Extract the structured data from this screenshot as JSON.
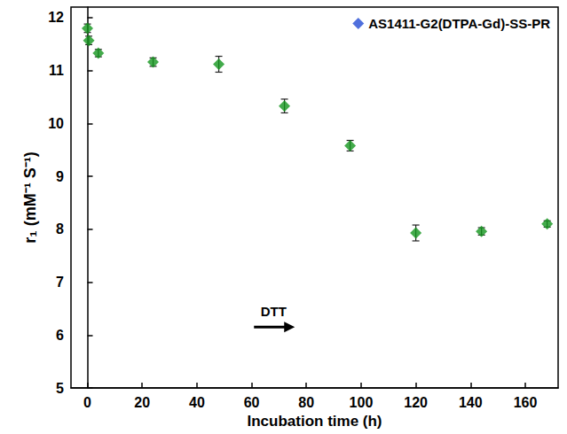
{
  "chart_data": {
    "type": "scatter",
    "x_label": "Incubation time (h)",
    "y_label": "r₁ (mM⁻¹ S⁻¹)",
    "x": [
      0,
      0.5,
      4,
      24,
      48,
      72,
      96,
      120,
      144,
      168
    ],
    "series": [
      {
        "name": "AS1411-G2(DTPA-Gd)-SS-PR",
        "color": "#14961e",
        "marker": "diamond",
        "values": [
          11.8,
          11.57,
          11.33,
          11.16,
          11.12,
          10.33,
          9.58,
          7.93,
          7.96,
          8.1
        ],
        "errors": [
          0.08,
          0.08,
          0.07,
          0.08,
          0.15,
          0.13,
          0.1,
          0.15,
          0.07,
          0.06
        ]
      }
    ],
    "xlim": [
      -6,
      172
    ],
    "xticks": [
      0,
      20,
      40,
      60,
      80,
      100,
      120,
      140,
      160
    ],
    "ylim": [
      5,
      12.2
    ],
    "yticks": [
      5,
      6,
      7,
      8,
      9,
      10,
      11,
      12
    ],
    "grid": false,
    "legend": "upper right",
    "annotations": [
      {
        "text": "DTT"
      }
    ]
  }
}
